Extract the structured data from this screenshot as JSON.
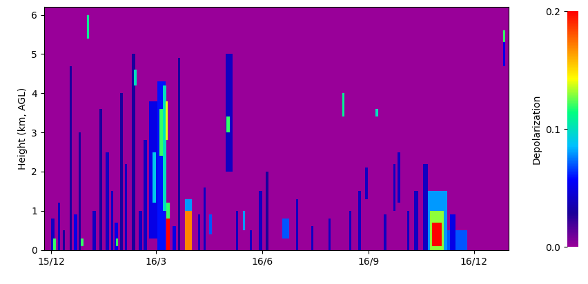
{
  "chart_data": {
    "type": "heatmap",
    "ylabel": "Height (km, AGL)",
    "xlim": [
      -6,
      396
    ],
    "xticks": [
      {
        "value": 0,
        "label": "15/12"
      },
      {
        "value": 91,
        "label": "16/3"
      },
      {
        "value": 183,
        "label": "16/6"
      },
      {
        "value": 275,
        "label": "16/9"
      },
      {
        "value": 366,
        "label": "16/12"
      }
    ],
    "ylim": [
      0,
      6.2
    ],
    "yticks": [
      0,
      1,
      2,
      3,
      4,
      5,
      6
    ],
    "colorbar_label": "Depolarization",
    "colorbar_lim": [
      0.0,
      0.2
    ],
    "colorbar_ticks": [
      {
        "value": 0.0,
        "label": "0.0"
      },
      {
        "value": 0.1,
        "label": "0.1"
      },
      {
        "value": 0.2,
        "label": "0.2"
      }
    ],
    "cells": [
      [
        0,
        3,
        0,
        0.8,
        0.04
      ],
      [
        2,
        4,
        0,
        0.3,
        0.12
      ],
      [
        6,
        8,
        0,
        1.2,
        0.04
      ],
      [
        10,
        12,
        0,
        0.5,
        0.03
      ],
      [
        16,
        18,
        0,
        4.7,
        0.03
      ],
      [
        20,
        23,
        0,
        0.9,
        0.05
      ],
      [
        24,
        26,
        0,
        3.0,
        0.03
      ],
      [
        26,
        28,
        0.1,
        0.3,
        0.12
      ],
      [
        31,
        33,
        5.4,
        6.0,
        0.11
      ],
      [
        36,
        39,
        0,
        1.0,
        0.04
      ],
      [
        42,
        44,
        0,
        3.6,
        0.03
      ],
      [
        47,
        50,
        0,
        2.5,
        0.04
      ],
      [
        52,
        54,
        0,
        1.5,
        0.04
      ],
      [
        55,
        58,
        0,
        0.7,
        0.05
      ],
      [
        56,
        58,
        0.1,
        0.3,
        0.12
      ],
      [
        60,
        62,
        0,
        4.0,
        0.03
      ],
      [
        64,
        66,
        0,
        2.2,
        0.04
      ],
      [
        70,
        73,
        0,
        5.0,
        0.03
      ],
      [
        72,
        74,
        4.2,
        4.6,
        0.1
      ],
      [
        76,
        79,
        0,
        1.0,
        0.04
      ],
      [
        80,
        83,
        0,
        2.8,
        0.04
      ],
      [
        85,
        92,
        0.3,
        3.8,
        0.05
      ],
      [
        88,
        91,
        1.2,
        2.5,
        0.09
      ],
      [
        92,
        99,
        0,
        4.3,
        0.06
      ],
      [
        94,
        97,
        2.4,
        3.6,
        0.12
      ],
      [
        97,
        100,
        1.0,
        4.2,
        0.1
      ],
      [
        99,
        101,
        2.8,
        3.8,
        0.14
      ],
      [
        100,
        103,
        0,
        0.8,
        0.2
      ],
      [
        100,
        103,
        0.8,
        1.2,
        0.12
      ],
      [
        105,
        108,
        0,
        0.6,
        0.05
      ],
      [
        110,
        112,
        0,
        4.9,
        0.03
      ],
      [
        116,
        122,
        0,
        1.0,
        0.17
      ],
      [
        116,
        122,
        1.0,
        1.3,
        0.08
      ],
      [
        127,
        129,
        0,
        0.9,
        0.04
      ],
      [
        132,
        134,
        0,
        1.6,
        0.04
      ],
      [
        137,
        139,
        0.4,
        0.9,
        0.07
      ],
      [
        151,
        157,
        2.0,
        5.0,
        0.04
      ],
      [
        152,
        155,
        3.0,
        3.4,
        0.12
      ],
      [
        160,
        162,
        0,
        1.0,
        0.04
      ],
      [
        166,
        168,
        0.5,
        1.0,
        0.08
      ],
      [
        172,
        174,
        0,
        0.5,
        0.04
      ],
      [
        180,
        183,
        0,
        1.5,
        0.04
      ],
      [
        186,
        188,
        0,
        2.0,
        0.03
      ],
      [
        200,
        206,
        0.3,
        0.8,
        0.07
      ],
      [
        212,
        214,
        0,
        1.3,
        0.04
      ],
      [
        225,
        227,
        0,
        0.6,
        0.04
      ],
      [
        240,
        242,
        0,
        0.8,
        0.04
      ],
      [
        252,
        254,
        3.4,
        4.0,
        0.11
      ],
      [
        258,
        260,
        0,
        1.0,
        0.04
      ],
      [
        266,
        268,
        0,
        1.5,
        0.04
      ],
      [
        272,
        274,
        1.3,
        2.1,
        0.04
      ],
      [
        281,
        283,
        3.4,
        3.6,
        0.1
      ],
      [
        288,
        290,
        0,
        0.9,
        0.04
      ],
      [
        296,
        298,
        1.0,
        2.2,
        0.04
      ],
      [
        300,
        302,
        1.2,
        2.5,
        0.04
      ],
      [
        308,
        310,
        0,
        1.0,
        0.04
      ],
      [
        314,
        318,
        0,
        1.5,
        0.04
      ],
      [
        322,
        326,
        0,
        2.2,
        0.04
      ],
      [
        326,
        343,
        0,
        1.5,
        0.08
      ],
      [
        328,
        340,
        0,
        1.0,
        0.13
      ],
      [
        330,
        338,
        0.1,
        0.7,
        0.2
      ],
      [
        343,
        360,
        0,
        0.5,
        0.07
      ],
      [
        345,
        350,
        0,
        0.9,
        0.05
      ],
      [
        391,
        393,
        4.7,
        5.5,
        0.05
      ],
      [
        391,
        393,
        5.3,
        5.6,
        0.12
      ]
    ]
  }
}
